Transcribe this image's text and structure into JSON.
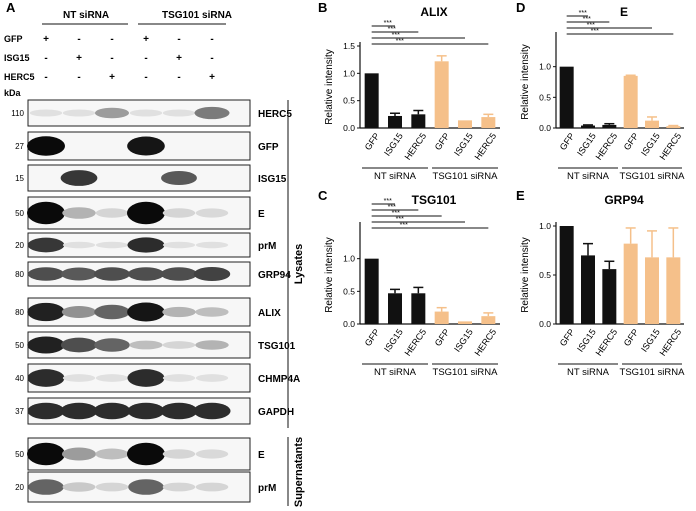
{
  "panel_a": {
    "letter": "A",
    "groups": [
      "NT siRNA",
      "TSG101 siRNA"
    ],
    "row_labels": [
      "GFP",
      "ISG15",
      "HERC5"
    ],
    "row_marks": [
      [
        "+",
        "-",
        "-",
        "+",
        "-",
        "-"
      ],
      [
        "-",
        "+",
        "-",
        "-",
        "+",
        "-"
      ],
      [
        "-",
        "-",
        "+",
        "-",
        "-",
        "+"
      ]
    ],
    "kda_label": "kDa",
    "lysate_blots": [
      {
        "name": "HERC5",
        "kda": "110",
        "intensity": [
          0.05,
          0.05,
          0.35,
          0.05,
          0.05,
          0.5
        ]
      },
      {
        "name": "GFP",
        "kda": "27",
        "intensity": [
          1.0,
          0.0,
          0.0,
          0.95,
          0.0,
          0.0
        ]
      },
      {
        "name": "ISG15",
        "kda": "15",
        "intensity": [
          0.0,
          0.8,
          0.0,
          0.0,
          0.65,
          0.0
        ]
      },
      {
        "name": "E",
        "kda": "50",
        "intensity": [
          1.0,
          0.25,
          0.1,
          1.0,
          0.1,
          0.08
        ]
      },
      {
        "name": "prM",
        "kda": "20",
        "intensity": [
          0.8,
          0.05,
          0.05,
          0.85,
          0.05,
          0.05
        ]
      },
      {
        "name": "GRP94",
        "kda": "80",
        "intensity": [
          0.7,
          0.65,
          0.7,
          0.7,
          0.7,
          0.75
        ]
      },
      {
        "name": "ALIX",
        "kda": "80",
        "intensity": [
          0.9,
          0.4,
          0.6,
          0.95,
          0.25,
          0.2
        ]
      },
      {
        "name": "TSG101",
        "kda": "50",
        "intensity": [
          0.9,
          0.7,
          0.6,
          0.2,
          0.1,
          0.25
        ]
      },
      {
        "name": "CHMP4A",
        "kda": "40",
        "intensity": [
          0.85,
          0.05,
          0.05,
          0.85,
          0.05,
          0.05
        ]
      },
      {
        "name": "GAPDH",
        "kda": "37",
        "intensity": [
          0.85,
          0.85,
          0.85,
          0.85,
          0.85,
          0.85
        ]
      }
    ],
    "supernatant_blots": [
      {
        "name": "E",
        "kda": "50",
        "intensity": [
          1.0,
          0.35,
          0.2,
          1.0,
          0.1,
          0.08
        ]
      },
      {
        "name": "prM",
        "kda": "20",
        "intensity": [
          0.6,
          0.15,
          0.1,
          0.6,
          0.1,
          0.1
        ]
      }
    ],
    "lysates_label": "Lysates",
    "supernatants_label": "Supernatants"
  },
  "colors": {
    "nt": "#111111",
    "tsg": "#f5c08a",
    "axis": "#111111"
  },
  "chart_data": [
    {
      "letter": "B",
      "type": "bar",
      "title": "ALIX",
      "ylabel": "Relative intensity",
      "ylim": [
        0,
        1.5
      ],
      "yticks": [
        "0.0",
        "0.5",
        "1.0",
        "1.5"
      ],
      "categories": [
        "GFP",
        "ISG15",
        "HERC5",
        "GFP",
        "ISG15",
        "HERC5"
      ],
      "values": [
        1.0,
        0.22,
        0.25,
        1.22,
        0.14,
        0.2
      ],
      "errors": [
        0.0,
        0.05,
        0.07,
        0.1,
        0.0,
        0.05
      ],
      "groups": [
        "NT siRNA",
        "TSG101 siRNA"
      ],
      "significance": [
        "***",
        "***",
        "***",
        "***"
      ]
    },
    {
      "letter": "D",
      "type": "bar",
      "title": "E",
      "ylabel": "Relative intensity",
      "ylim": [
        0,
        1.5
      ],
      "yticks": [
        "0.0",
        "0.5",
        "1.0"
      ],
      "categories": [
        "GFP",
        "ISG15",
        "HERC5",
        "GFP",
        "ISG15",
        "HERC5"
      ],
      "values": [
        1.0,
        0.04,
        0.05,
        0.85,
        0.12,
        0.03
      ],
      "errors": [
        0.0,
        0.01,
        0.02,
        0.01,
        0.06,
        0.01
      ],
      "groups": [
        "NT siRNA",
        "TSG101 siRNA"
      ],
      "significance": [
        "***",
        "***",
        "***",
        "***"
      ]
    },
    {
      "letter": "C",
      "type": "bar",
      "title": "TSG101",
      "ylabel": "Relative intensity",
      "ylim": [
        0,
        1.5
      ],
      "yticks": [
        "0.0",
        "0.5",
        "1.0"
      ],
      "categories": [
        "GFP",
        "ISG15",
        "HERC5",
        "GFP",
        "ISG15",
        "HERC5"
      ],
      "values": [
        1.0,
        0.47,
        0.47,
        0.19,
        0.04,
        0.12
      ],
      "errors": [
        0.0,
        0.06,
        0.09,
        0.06,
        0.0,
        0.05
      ],
      "groups": [
        "NT siRNA",
        "TSG101 siRNA"
      ],
      "significance": [
        "***",
        "***",
        "***",
        "***",
        "***"
      ]
    },
    {
      "letter": "E",
      "type": "bar",
      "title": "GRP94",
      "ylabel": "Relative intensity",
      "ylim": [
        0,
        1.0
      ],
      "yticks": [
        "0.0",
        "0.5",
        "1.0"
      ],
      "categories": [
        "GFP",
        "ISG15",
        "HERC5",
        "GFP",
        "ISG15",
        "HERC5"
      ],
      "values": [
        1.0,
        0.7,
        0.56,
        0.82,
        0.68,
        0.68
      ],
      "errors": [
        0.0,
        0.12,
        0.08,
        0.16,
        0.27,
        0.3
      ],
      "groups": [
        "NT siRNA",
        "TSG101 siRNA"
      ],
      "significance": []
    }
  ]
}
